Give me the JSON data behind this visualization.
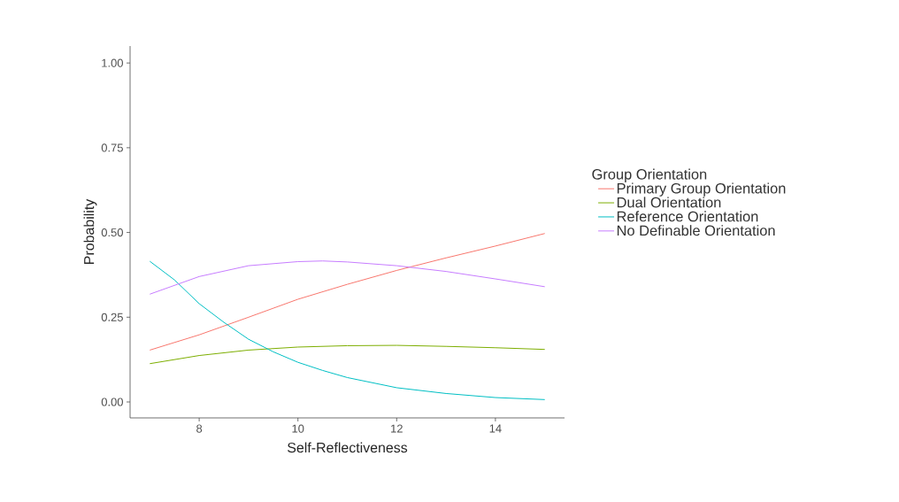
{
  "chart_data": {
    "type": "line",
    "xlabel": "Self-Reflectiveness",
    "ylabel": "Probability",
    "legend_title": "Group Orientation",
    "legend": "right",
    "grid": false,
    "marker": "none",
    "line_style": "solid",
    "xlim": [
      6.6,
      15.4
    ],
    "ylim": [
      -0.047,
      1.05
    ],
    "xticks": [
      8,
      10,
      12,
      14
    ],
    "yticks": [
      {
        "value": 0,
        "label": "0.00"
      },
      {
        "value": 0.25,
        "label": "0.25"
      },
      {
        "value": 0.5,
        "label": "0.50"
      },
      {
        "value": 0.75,
        "label": "0.75"
      },
      {
        "value": 1,
        "label": "1.00"
      }
    ],
    "series": [
      {
        "name": "Primary Group Orientation",
        "color": "#f8766d",
        "x": [
          7,
          8,
          9,
          10,
          11,
          12,
          13,
          14,
          15
        ],
        "values": [
          0.153,
          0.198,
          0.25,
          0.303,
          0.347,
          0.388,
          0.425,
          0.46,
          0.497
        ]
      },
      {
        "name": "Dual Orientation",
        "color": "#7cae00",
        "x": [
          7,
          8,
          9,
          10,
          11,
          12,
          13,
          14,
          15
        ],
        "values": [
          0.113,
          0.137,
          0.153,
          0.162,
          0.166,
          0.167,
          0.164,
          0.16,
          0.155
        ]
      },
      {
        "name": "Reference Orientation",
        "color": "#00bfc4",
        "x": [
          7,
          7.5,
          8,
          8.5,
          9,
          9.5,
          10,
          10.5,
          11,
          12,
          13,
          14,
          15
        ],
        "values": [
          0.415,
          0.36,
          0.29,
          0.235,
          0.185,
          0.148,
          0.117,
          0.093,
          0.072,
          0.042,
          0.025,
          0.013,
          0.007
        ]
      },
      {
        "name": "No Definable Orientation",
        "color": "#c77cff",
        "x": [
          7,
          8,
          9,
          10,
          10.5,
          11,
          12,
          13,
          14,
          15
        ],
        "values": [
          0.318,
          0.37,
          0.402,
          0.414,
          0.416,
          0.413,
          0.402,
          0.385,
          0.363,
          0.34
        ]
      }
    ]
  }
}
